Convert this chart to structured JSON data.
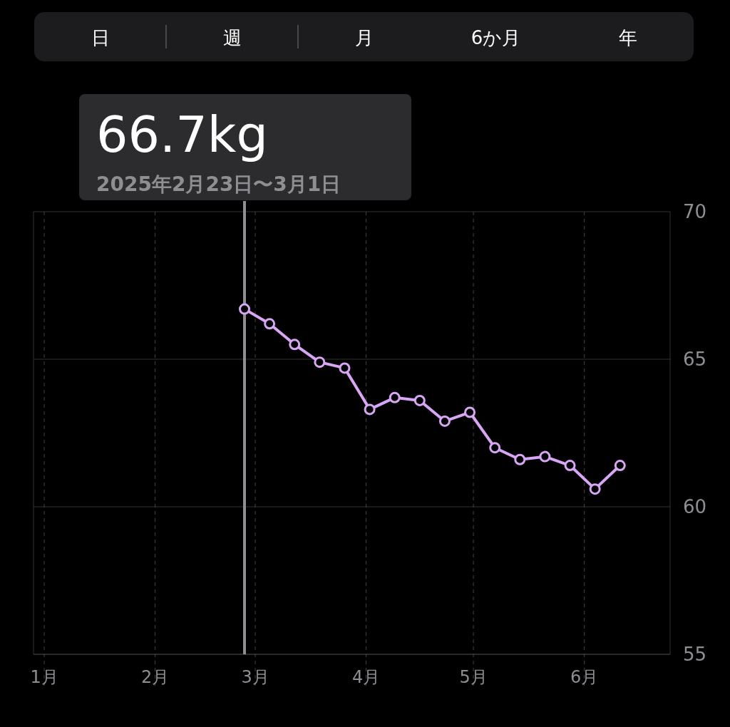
{
  "chart_data": {
    "type": "line",
    "x": [
      "2025-02-26",
      "2025-03-05",
      "2025-03-12",
      "2025-03-19",
      "2025-03-26",
      "2025-04-02",
      "2025-04-09",
      "2025-04-16",
      "2025-04-23",
      "2025-04-30",
      "2025-05-07",
      "2025-05-14",
      "2025-05-21",
      "2025-05-28",
      "2025-06-04",
      "2025-06-11"
    ],
    "series": [
      {
        "color": "#d9a6f5",
        "values": [
          66.7,
          66.2,
          65.5,
          64.9,
          64.7,
          63.3,
          63.7,
          63.6,
          62.9,
          63.2,
          62.0,
          61.6,
          61.7,
          61.4,
          60.6,
          61.4
        ]
      }
    ],
    "marker": "circle",
    "line_style": "solid",
    "grid": true,
    "xlim": [
      "2024-12-29",
      "2025-06-25"
    ],
    "xticks": [
      {
        "value": "2025-01-01",
        "label": "1月"
      },
      {
        "value": "2025-02-01",
        "label": "2月"
      },
      {
        "value": "2025-03-01",
        "label": "3月"
      },
      {
        "value": "2025-04-01",
        "label": "4月"
      },
      {
        "value": "2025-05-01",
        "label": "5月"
      },
      {
        "value": "2025-06-01",
        "label": "6月"
      }
    ],
    "ylim": [
      55,
      70
    ],
    "yticks": [
      55,
      60,
      65,
      70
    ],
    "ref_lines": [
      {
        "axis": "x",
        "value": "2025-02-26",
        "color": "#8e8e93"
      }
    ],
    "annotations": [
      "日",
      "週",
      "月",
      "6か月",
      "年",
      "66.7kg",
      "2025年2月23日〜3月1日"
    ]
  }
}
